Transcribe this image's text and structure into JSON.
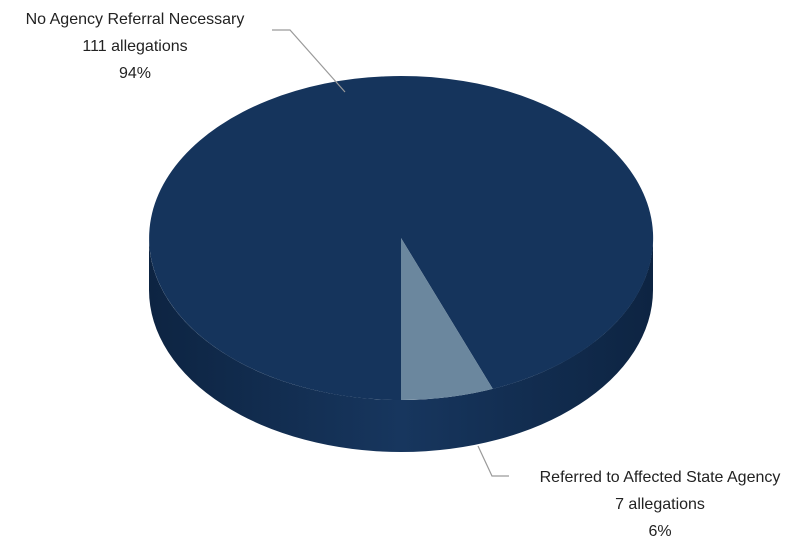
{
  "chart_data": {
    "type": "pie",
    "style": "3d",
    "categories": [
      "No Agency Referral Necessary",
      "Referred to Affected State Agency"
    ],
    "values": [
      111,
      7
    ],
    "unit": "allegations",
    "percents": [
      "94%",
      "6%"
    ],
    "colors": {
      "No Agency Referral Necessary": "#15345c",
      "Referred to Affected State Agency": "#6b879e"
    },
    "labels": [
      {
        "name": "No Agency Referral Necessary",
        "count": "111 allegations",
        "percent": "94%"
      },
      {
        "name": "Referred to Affected State Agency",
        "count": "7 allegations",
        "percent": "6%"
      }
    ],
    "legend": "none"
  }
}
